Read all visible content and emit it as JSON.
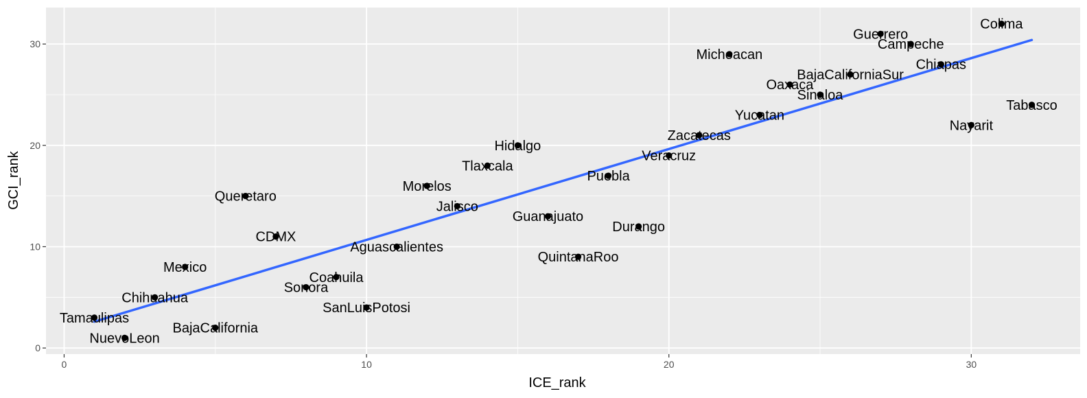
{
  "chart_data": {
    "type": "scatter",
    "title": "",
    "xlabel": "ICE_rank",
    "ylabel": "GCI_rank",
    "xlim": [
      -0.6,
      33.6
    ],
    "ylim": [
      -0.6,
      33.6
    ],
    "x_ticks": [
      0,
      10,
      20,
      30
    ],
    "y_ticks": [
      0,
      10,
      20,
      30
    ],
    "grid": true,
    "points": [
      {
        "label": "Tamaulipas",
        "x": 1,
        "y": 3
      },
      {
        "label": "NuevoLeon",
        "x": 2,
        "y": 1
      },
      {
        "label": "Chihuahua",
        "x": 3,
        "y": 5
      },
      {
        "label": "Mexico",
        "x": 4,
        "y": 8
      },
      {
        "label": "BajaCalifornia",
        "x": 5,
        "y": 2
      },
      {
        "label": "Queretaro",
        "x": 6,
        "y": 15
      },
      {
        "label": "CDMX",
        "x": 7,
        "y": 11
      },
      {
        "label": "Sonora",
        "x": 8,
        "y": 6
      },
      {
        "label": "Coahuila",
        "x": 9,
        "y": 7
      },
      {
        "label": "SanLuisPotosi",
        "x": 10,
        "y": 4
      },
      {
        "label": "Aguascalientes",
        "x": 11,
        "y": 10
      },
      {
        "label": "Morelos",
        "x": 12,
        "y": 16
      },
      {
        "label": "Jalisco",
        "x": 13,
        "y": 14
      },
      {
        "label": "Tlaxcala",
        "x": 14,
        "y": 18
      },
      {
        "label": "Hidalgo",
        "x": 15,
        "y": 20
      },
      {
        "label": "Guanajuato",
        "x": 16,
        "y": 13
      },
      {
        "label": "QuintanaRoo",
        "x": 17,
        "y": 9
      },
      {
        "label": "Puebla",
        "x": 18,
        "y": 17
      },
      {
        "label": "Durango",
        "x": 19,
        "y": 12
      },
      {
        "label": "Veracruz",
        "x": 20,
        "y": 19
      },
      {
        "label": "Zacatecas",
        "x": 21,
        "y": 21
      },
      {
        "label": "Michoacan",
        "x": 22,
        "y": 29
      },
      {
        "label": "Yucatan",
        "x": 23,
        "y": 23
      },
      {
        "label": "Oaxaca",
        "x": 24,
        "y": 26
      },
      {
        "label": "Sinaloa",
        "x": 25,
        "y": 25
      },
      {
        "label": "BajaCaliforniaSur",
        "x": 26,
        "y": 27
      },
      {
        "label": "Guerrero",
        "x": 27,
        "y": 31
      },
      {
        "label": "Campeche",
        "x": 28,
        "y": 30
      },
      {
        "label": "Chiapas",
        "x": 29,
        "y": 28
      },
      {
        "label": "Nayarit",
        "x": 30,
        "y": 22
      },
      {
        "label": "Colima",
        "x": 31,
        "y": 32
      },
      {
        "label": "Tabasco",
        "x": 32,
        "y": 24
      }
    ],
    "trend_line": {
      "method": "linear",
      "x": [
        1,
        32
      ],
      "y": [
        2.6,
        30.4
      ],
      "color": "#3366FF"
    }
  },
  "colors": {
    "panel_background": "#EBEBEB",
    "grid": "#FFFFFF",
    "point": "#000000",
    "trend": "#3366FF"
  }
}
